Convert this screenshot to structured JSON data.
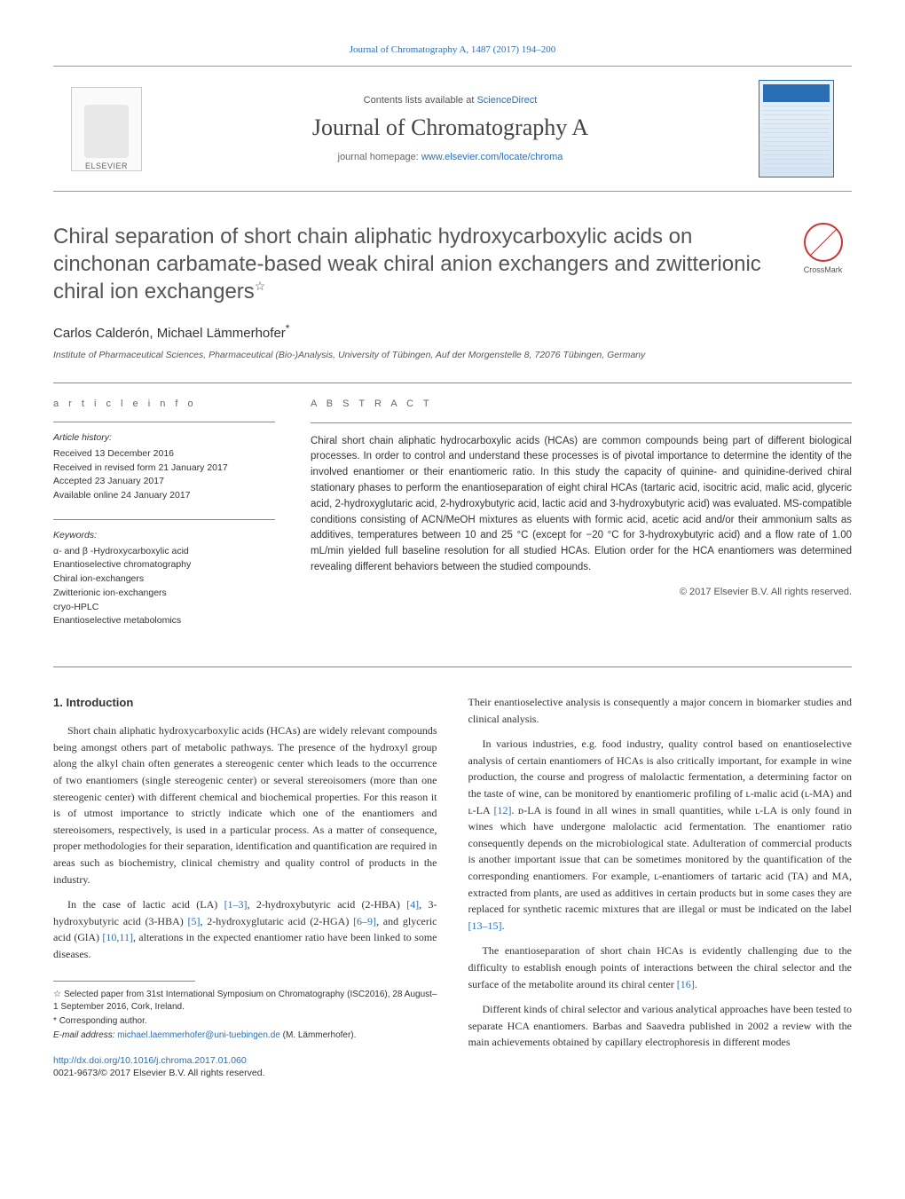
{
  "header": {
    "citation_link": "Journal of Chromatography A, 1487 (2017) 194–200",
    "contents_prefix": "Contents lists available at ",
    "contents_link": "ScienceDirect",
    "journal_title": "Journal of Chromatography A",
    "homepage_prefix": "journal homepage: ",
    "homepage_link": "www.elsevier.com/locate/chroma",
    "publisher_logo": "ELSEVIER",
    "crossmark": "CrossMark"
  },
  "article": {
    "title": "Chiral separation of short chain aliphatic hydroxycarboxylic acids on cinchonan carbamate-based weak chiral anion exchangers and zwitterionic chiral ion exchangers",
    "title_footnote": "☆",
    "authors": "Carlos Calderón, Michael Lämmerhofer",
    "corr_mark": "*",
    "affiliation": "Institute of Pharmaceutical Sciences, Pharmaceutical (Bio-)Analysis, University of Tübingen, Auf der Morgenstelle 8, 72076 Tübingen, Germany"
  },
  "meta": {
    "info_label": "a r t i c l e   i n f o",
    "abstract_label": "A B S T R A C T",
    "history_hd": "Article history:",
    "history": {
      "received": "Received 13 December 2016",
      "revised": "Received in revised form 21 January 2017",
      "accepted": "Accepted 23 January 2017",
      "online": "Available online 24 January 2017"
    },
    "keywords_hd": "Keywords:",
    "keywords": [
      "α- and β -Hydroxycarboxylic acid",
      "Enantioselective chromatography",
      "Chiral ion-exchangers",
      "Zwitterionic ion-exchangers",
      "cryo-HPLC",
      "Enantioselective metabolomics"
    ],
    "abstract": "Chiral short chain aliphatic hydrocarboxylic acids (HCAs) are common compounds being part of different biological processes. In order to control and understand these processes is of pivotal importance to determine the identity of the involved enantiomer or their enantiomeric ratio. In this study the capacity of quinine- and quinidine-derived chiral stationary phases to perform the enantioseparation of eight chiral HCAs (tartaric acid, isocitric acid, malic acid, glyceric acid, 2-hydroxyglutaric acid, 2-hydroxybutyric acid, lactic acid and 3-hydroxybutyric acid) was evaluated. MS-compatible conditions consisting of ACN/MeOH mixtures as eluents with formic acid, acetic acid and/or their ammonium salts as additives, temperatures between 10 and 25 °C (except for −20 °C for 3-hydroxybutyric acid) and a flow rate of 1.00 mL/min yielded full baseline resolution for all studied HCAs. Elution order for the HCA enantiomers was determined revealing different behaviors between the studied compounds.",
    "copyright": "© 2017 Elsevier B.V. All rights reserved."
  },
  "body": {
    "intro_heading": "1. Introduction",
    "left": {
      "p1": "Short chain aliphatic hydroxycarboxylic acids (HCAs) are widely relevant compounds being amongst others part of metabolic pathways. The presence of the hydroxyl group along the alkyl chain often generates a stereogenic center which leads to the occurrence of two enantiomers (single stereogenic center) or several stereoisomers (more than one stereogenic center) with different chemical and biochemical properties. For this reason it is of utmost importance to strictly indicate which one of the enantiomers and stereoisomers, respectively, is used in a particular process. As a matter of consequence, proper methodologies for their separation, identification and quantification are required in areas such as biochemistry, clinical chemistry and quality control of products in the industry.",
      "p2_a": "In the case of lactic acid (LA) ",
      "p2_r1": "[1–3]",
      "p2_b": ", 2-hydroxybutyric acid (2-HBA) ",
      "p2_r2": "[4]",
      "p2_c": ", 3-hydroxybutyric acid (3-HBA) ",
      "p2_r3": "[5]",
      "p2_d": ", 2-hydroxyglutaric acid (2-HGA) ",
      "p2_r4": "[6–9]",
      "p2_e": ", and glyceric acid (GlA) ",
      "p2_r5": "[10,11]",
      "p2_f": ", alterations in the expected enantiomer ratio have been linked to some diseases."
    },
    "right": {
      "p1": "Their enantioselective analysis is consequently a major concern in biomarker studies and clinical analysis.",
      "p2_a": "In various industries, e.g. food industry, quality control based on enantioselective analysis of certain enantiomers of HCAs is also critically important, for example in wine production, the course and progress of malolactic fermentation, a determining factor on the taste of wine, can be monitored by enantiomeric profiling of ʟ-malic acid (ʟ-MA) and ʟ-LA ",
      "p2_r1": "[12]",
      "p2_b": ". ᴅ-LA is found in all wines in small quantities, while ʟ-LA is only found in wines which have undergone malolactic acid fermentation. The enantiomer ratio consequently depends on the microbiological state. Adulteration of commercial products is another important issue that can be sometimes monitored by the quantification of the corresponding enantiomers. For example, ʟ-enantiomers of tartaric acid (TA) and MA, extracted from plants, are used as additives in certain products but in some cases they are replaced for synthetic racemic mixtures that are illegal or must be indicated on the label ",
      "p2_r2": "[13–15]",
      "p2_c": ".",
      "p3_a": "The enantioseparation of short chain HCAs is evidently challenging due to the difficulty to establish enough points of interactions between the chiral selector and the surface of the metabolite around its chiral center ",
      "p3_r1": "[16]",
      "p3_b": ".",
      "p4": "Different kinds of chiral selector and various analytical approaches have been tested to separate HCA enantiomers. Barbas and Saavedra published in 2002 a review with the main achievements obtained by capillary electrophoresis in different modes"
    }
  },
  "footnotes": {
    "fn1_mark": "☆",
    "fn1_text": "Selected paper from 31st International Symposium on Chromatography (ISC2016), 28 August–1 September 2016, Cork, Ireland.",
    "fn2_mark": "*",
    "fn2_text": "Corresponding author.",
    "email_label": "E-mail address: ",
    "email": "michael.laemmerhofer@uni-tuebingen.de",
    "email_tail": " (M. Lämmerhofer)."
  },
  "doi": {
    "link": "http://dx.doi.org/10.1016/j.chroma.2017.01.060",
    "issn_line": "0021-9673/© 2017 Elsevier B.V. All rights reserved."
  },
  "colors": {
    "link": "#2a6fb5",
    "rule": "#888888",
    "text": "#333333",
    "title_gray": "#545454"
  }
}
